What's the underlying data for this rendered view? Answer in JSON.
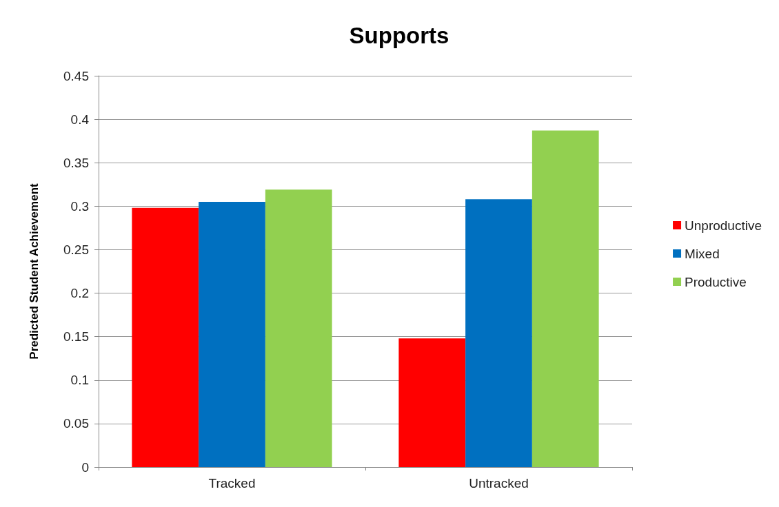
{
  "chart_data": {
    "type": "bar",
    "title": "Supports",
    "ylabel": "Predicted Student Achievement",
    "categories": [
      "Tracked",
      "Untracked"
    ],
    "series": [
      {
        "name": "Unproductive",
        "color": "#ff0000",
        "values": [
          0.298,
          0.148
        ]
      },
      {
        "name": "Mixed",
        "color": "#0070c0",
        "values": [
          0.305,
          0.308
        ]
      },
      {
        "name": "Productive",
        "color": "#92d050",
        "values": [
          0.319,
          0.387
        ]
      }
    ],
    "ylim": [
      0,
      0.45
    ],
    "yticks": [
      0,
      0.05,
      0.1,
      0.15,
      0.2,
      0.25,
      0.3,
      0.35,
      0.4,
      0.45
    ],
    "grid": "y",
    "legend": "right"
  }
}
